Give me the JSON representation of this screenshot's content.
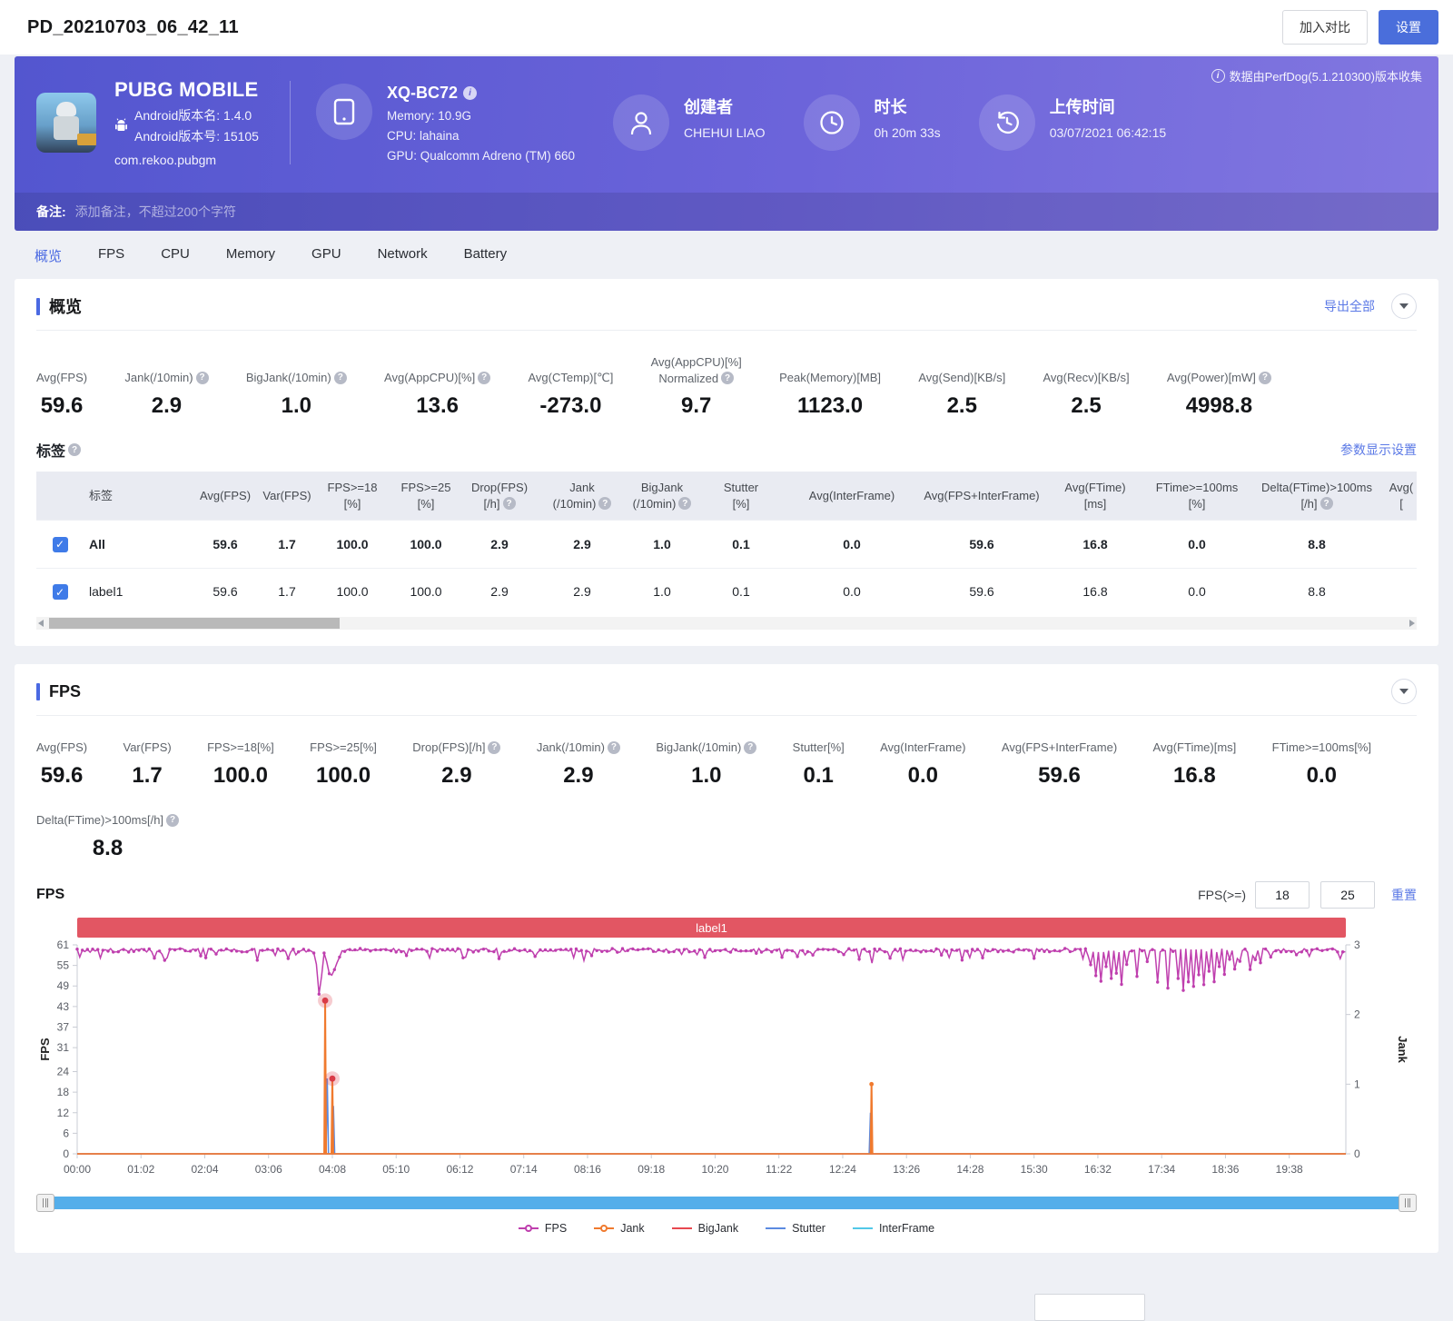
{
  "page": {
    "title": "PD_20210703_06_42_11"
  },
  "topbar": {
    "compare_button": "加入对比",
    "settings_button": "设置"
  },
  "header": {
    "app": {
      "name": "PUBG MOBILE",
      "android_version_name": "Android版本名: 1.4.0",
      "android_version_code": "Android版本号: 15105",
      "package": "com.rekoo.pubgm"
    },
    "device": {
      "model": "XQ-BC72",
      "memory": "Memory: 10.9G",
      "cpu": "CPU: lahaina",
      "gpu": "GPU: Qualcomm Adreno (TM) 660"
    },
    "creator": {
      "label": "创建者",
      "value": "CHEHUI LIAO"
    },
    "duration": {
      "label": "时长",
      "value": "0h 20m 33s"
    },
    "upload": {
      "label": "上传时间",
      "value": "03/07/2021 06:42:15"
    },
    "collect_info": "数据由PerfDog(5.1.210300)版本收集",
    "note_label": "备注:",
    "note_placeholder": "添加备注，不超过200个字符"
  },
  "tabs": [
    {
      "label": "概览",
      "active": true
    },
    {
      "label": "FPS",
      "active": false
    },
    {
      "label": "CPU",
      "active": false
    },
    {
      "label": "Memory",
      "active": false
    },
    {
      "label": "GPU",
      "active": false
    },
    {
      "label": "Network",
      "active": false
    },
    {
      "label": "Battery",
      "active": false
    }
  ],
  "overview": {
    "title": "概览",
    "export_link": "导出全部",
    "stats": [
      {
        "label": "Avg(FPS)",
        "value": "59.6",
        "help": false
      },
      {
        "label": "Jank(/10min)",
        "value": "2.9",
        "help": true
      },
      {
        "label": "BigJank(/10min)",
        "value": "1.0",
        "help": true
      },
      {
        "label": "Avg(AppCPU)[%]",
        "value": "13.6",
        "help": true
      },
      {
        "label": "Avg(CTemp)[℃]",
        "value": "-273.0",
        "help": false
      },
      {
        "label": "Avg(AppCPU)[%]",
        "label2": "Normalized",
        "value": "9.7",
        "help": true
      },
      {
        "label": "Peak(Memory)[MB]",
        "value": "1123.0",
        "help": false
      },
      {
        "label": "Avg(Send)[KB/s]",
        "value": "2.5",
        "help": false
      },
      {
        "label": "Avg(Recv)[KB/s]",
        "value": "2.5",
        "help": false
      },
      {
        "label": "Avg(Power)[mW]",
        "value": "4998.8",
        "help": true
      }
    ],
    "labels_section": {
      "title": "标签",
      "settings_link": "参数显示设置"
    },
    "table": {
      "columns": [
        {
          "l1": "标签",
          "l2": "",
          "help": false
        },
        {
          "l1": "Avg(FPS)",
          "l2": "",
          "help": false
        },
        {
          "l1": "Var(FPS)",
          "l2": "",
          "help": false
        },
        {
          "l1": "FPS>=18",
          "l2": "[%]",
          "help": false
        },
        {
          "l1": "FPS>=25",
          "l2": "[%]",
          "help": false
        },
        {
          "l1": "Drop(FPS)",
          "l2": "[/h]",
          "help": true
        },
        {
          "l1": "Jank",
          "l2": "(/10min)",
          "help": true
        },
        {
          "l1": "BigJank",
          "l2": "(/10min)",
          "help": true
        },
        {
          "l1": "Stutter",
          "l2": "[%]",
          "help": false
        },
        {
          "l1": "Avg(InterFrame)",
          "l2": "",
          "help": false
        },
        {
          "l1": "Avg(FPS+InterFrame)",
          "l2": "",
          "help": false
        },
        {
          "l1": "Avg(FTime)",
          "l2": "[ms]",
          "help": false
        },
        {
          "l1": "FTime>=100ms",
          "l2": "[%]",
          "help": false
        },
        {
          "l1": "Delta(FTime)>100ms",
          "l2": "[/h]",
          "help": true
        },
        {
          "l1": "Avg(",
          "l2": "[",
          "help": false
        }
      ],
      "rows": [
        {
          "label": "All",
          "checked": true,
          "bold": true,
          "values": [
            "59.6",
            "1.7",
            "100.0",
            "100.0",
            "2.9",
            "2.9",
            "1.0",
            "0.1",
            "0.0",
            "59.6",
            "16.8",
            "0.0",
            "8.8"
          ]
        },
        {
          "label": "label1",
          "checked": true,
          "bold": false,
          "values": [
            "59.6",
            "1.7",
            "100.0",
            "100.0",
            "2.9",
            "2.9",
            "1.0",
            "0.1",
            "0.0",
            "59.6",
            "16.8",
            "0.0",
            "8.8"
          ]
        }
      ]
    }
  },
  "fps_section": {
    "title": "FPS",
    "stats_row1": [
      {
        "label": "Avg(FPS)",
        "value": "59.6",
        "help": false
      },
      {
        "label": "Var(FPS)",
        "value": "1.7",
        "help": false
      },
      {
        "label": "FPS>=18[%]",
        "value": "100.0",
        "help": false
      },
      {
        "label": "FPS>=25[%]",
        "value": "100.0",
        "help": false
      },
      {
        "label": "Drop(FPS)[/h]",
        "value": "2.9",
        "help": true
      },
      {
        "label": "Jank(/10min)",
        "value": "2.9",
        "help": true
      },
      {
        "label": "BigJank(/10min)",
        "value": "1.0",
        "help": true
      },
      {
        "label": "Stutter[%]",
        "value": "0.1",
        "help": false
      },
      {
        "label": "Avg(InterFrame)",
        "value": "0.0",
        "help": false
      },
      {
        "label": "Avg(FPS+InterFrame)",
        "value": "59.6",
        "help": false
      },
      {
        "label": "Avg(FTime)[ms]",
        "value": "16.8",
        "help": false
      },
      {
        "label": "FTime>=100ms[%]",
        "value": "0.0",
        "help": false
      }
    ],
    "stats_row2": [
      {
        "label": "Delta(FTime)>100ms[/h]",
        "value": "8.8",
        "help": true
      }
    ],
    "chart_title": "FPS",
    "fps_filter_label": "FPS(>=)",
    "fps_min_input": "18",
    "fps_max_input": "25",
    "reset_link": "重置"
  },
  "chart_data": {
    "type": "line",
    "title": "FPS",
    "band_label": "label1",
    "duration_sec": 1233,
    "x_ticks_sec_interval": 62,
    "x_tick_labels": [
      "00:00",
      "01:02",
      "02:04",
      "03:06",
      "04:08",
      "05:10",
      "06:12",
      "07:14",
      "08:16",
      "09:18",
      "10:20",
      "11:22",
      "12:24",
      "13:26",
      "14:28",
      "15:30",
      "16:32",
      "17:34",
      "18:36",
      "19:38"
    ],
    "y_left": {
      "label": "FPS",
      "min": 0,
      "max": 61,
      "ticks": [
        0,
        6,
        12,
        18,
        24,
        31,
        37,
        43,
        49,
        55,
        61
      ]
    },
    "y_right": {
      "label": "Jank",
      "min": 0,
      "max": 3,
      "ticks": [
        0,
        1,
        2,
        3
      ]
    },
    "series": [
      {
        "name": "FPS",
        "color": "#bf3fae",
        "axis": "left",
        "style": "line-dots",
        "legend_marker": true,
        "baseline": 59.4,
        "dips": [
          [
            88,
            57.5
          ],
          [
            176,
            56.5
          ],
          [
            205,
            57
          ],
          [
            230,
            58.3
          ],
          [
            232,
            55
          ],
          [
            234,
            50
          ],
          [
            235,
            46.5
          ],
          [
            236,
            47
          ],
          [
            237,
            52
          ],
          [
            238,
            57.5
          ],
          [
            240,
            58.5
          ],
          [
            243,
            56
          ],
          [
            244,
            53
          ],
          [
            245,
            52.5
          ],
          [
            246,
            54
          ],
          [
            247,
            52
          ],
          [
            248,
            53
          ],
          [
            249,
            55
          ],
          [
            250,
            53.5
          ],
          [
            252,
            56
          ],
          [
            254,
            57.5
          ],
          [
            320,
            57.5
          ],
          [
            410,
            57.2
          ],
          [
            500,
            57.5
          ],
          [
            610,
            57.2
          ],
          [
            700,
            57.5
          ],
          [
            772,
            55.5
          ],
          [
            790,
            57
          ],
          [
            860,
            56.6
          ],
          [
            930,
            57.2
          ],
          [
            985,
            55
          ],
          [
            990,
            52
          ],
          [
            995,
            50.5
          ],
          [
            1000,
            55
          ],
          [
            1005,
            51
          ],
          [
            1010,
            53
          ],
          [
            1015,
            49.5
          ],
          [
            1020,
            55
          ],
          [
            1030,
            52
          ],
          [
            1040,
            56
          ],
          [
            1050,
            50
          ],
          [
            1060,
            48.5
          ],
          [
            1070,
            51
          ],
          [
            1075,
            47.5
          ],
          [
            1080,
            50
          ],
          [
            1085,
            48.5
          ],
          [
            1090,
            52
          ],
          [
            1095,
            49.5
          ],
          [
            1100,
            53
          ],
          [
            1105,
            50.5
          ],
          [
            1110,
            55
          ],
          [
            1115,
            52
          ],
          [
            1120,
            57
          ],
          [
            1125,
            54
          ],
          [
            1130,
            56
          ],
          [
            1140,
            53.5
          ],
          [
            1145,
            57
          ],
          [
            1150,
            55.5
          ],
          [
            1160,
            57.5
          ],
          [
            1228,
            57.3
          ]
        ]
      },
      {
        "name": "Jank",
        "color": "#f07a2e",
        "axis": "right",
        "style": "spikes",
        "legend_marker": true,
        "baseline": 0,
        "spikes": [
          [
            241,
            2.2
          ],
          [
            248,
            1.08
          ],
          [
            772,
            1.0
          ]
        ]
      },
      {
        "name": "BigJank",
        "color": "#e8484f",
        "axis": "right",
        "style": "markers",
        "legend_marker": false,
        "baseline": 0,
        "markers": [
          [
            241,
            2.2
          ],
          [
            248,
            1.08
          ]
        ]
      },
      {
        "name": "Stutter",
        "color": "#5b8ae0",
        "axis": "left",
        "style": "spikes",
        "legend_marker": false,
        "baseline": 0,
        "spikes": [
          [
            243,
            22
          ],
          [
            249,
            14
          ],
          [
            771,
            12
          ]
        ]
      },
      {
        "name": "InterFrame",
        "color": "#52c8e8",
        "axis": "left",
        "style": "flat",
        "legend_marker": false,
        "baseline": 0
      }
    ]
  }
}
